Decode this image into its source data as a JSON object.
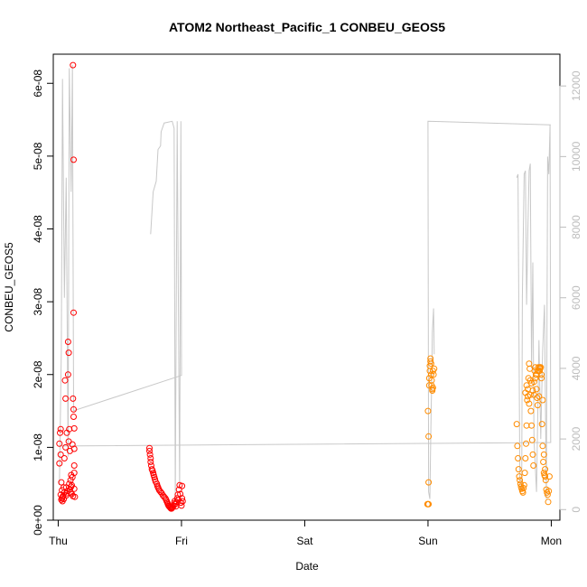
{
  "chart_data": {
    "type": "scatter",
    "title": "ATOM2 Northeast_Pacific_1 CONBEU_GEOS5",
    "xlabel": "Date",
    "ylabel": "CONBEU_GEOS5",
    "x_ticks": [
      "Thu",
      "Fri",
      "Sat",
      "Sun",
      "Mon"
    ],
    "xlim": [
      -0.04,
      4.07
    ],
    "ylim": [
      0,
      6.4e-08
    ],
    "y_ticks": [
      {
        "value": 0,
        "label": "0e+00"
      },
      {
        "value": 1e-08,
        "label": "1e-08"
      },
      {
        "value": 2e-08,
        "label": "2e-08"
      },
      {
        "value": 3e-08,
        "label": "3e-08"
      },
      {
        "value": 4e-08,
        "label": "4e-08"
      },
      {
        "value": 5e-08,
        "label": "5e-08"
      },
      {
        "value": 6e-08,
        "label": "6e-08"
      }
    ],
    "y2_range": [
      -300,
      12900
    ],
    "y2_ticks": [
      0,
      2000,
      4000,
      6000,
      8000,
      10000,
      12000
    ],
    "grid": false,
    "colors": {
      "series1": "#ff0000",
      "series2": "#ff8c00",
      "altitude": "#c8c8c8",
      "axis": "#000000",
      "right_axis": "#bdbdbd"
    },
    "series": [
      {
        "color": "#ff0000",
        "points": [
          [
            0.01,
            1.05e-08
          ],
          [
            0.01,
            7.8e-09
          ],
          [
            0.015,
            1.2e-08
          ],
          [
            0.02,
            1.25e-08
          ],
          [
            0.02,
            9e-09
          ],
          [
            0.025,
            5.2e-09
          ],
          [
            0.02,
            3.5e-09
          ],
          [
            0.025,
            2.8e-09
          ],
          [
            0.03,
            3e-09
          ],
          [
            0.03,
            4.1e-09
          ],
          [
            0.035,
            3.2e-09
          ],
          [
            0.035,
            2.6e-09
          ],
          [
            0.04,
            3.3e-09
          ],
          [
            0.045,
            2.9e-09
          ],
          [
            0.045,
            4.5e-09
          ],
          [
            0.05,
            8.5e-09
          ],
          [
            0.05,
            3.8e-09
          ],
          [
            0.055,
            1.92e-08
          ],
          [
            0.06,
            1e-08
          ],
          [
            0.06,
            1.67e-08
          ],
          [
            0.065,
            4.5e-09
          ],
          [
            0.065,
            3.4e-09
          ],
          [
            0.07,
            3.7e-09
          ],
          [
            0.07,
            1.2e-08
          ],
          [
            0.075,
            4e-09
          ],
          [
            0.08,
            2e-08
          ],
          [
            0.08,
            2.45e-08
          ],
          [
            0.085,
            2.3e-08
          ],
          [
            0.085,
            1.08e-08
          ],
          [
            0.09,
            1.25e-08
          ],
          [
            0.09,
            5e-09
          ],
          [
            0.095,
            4.2e-09
          ],
          [
            0.095,
            9.5e-09
          ],
          [
            0.1,
            3.8e-09
          ],
          [
            0.1,
            5.5e-09
          ],
          [
            0.105,
            4.6e-09
          ],
          [
            0.105,
            6.2e-09
          ],
          [
            0.11,
            4.8e-09
          ],
          [
            0.11,
            3.6e-09
          ],
          [
            0.115,
            5.9e-09
          ],
          [
            0.115,
            1.04e-08
          ],
          [
            0.12,
            3.3e-09
          ],
          [
            0.12,
            1.67e-08
          ],
          [
            0.125,
            1.52e-08
          ],
          [
            0.125,
            1.42e-08
          ],
          [
            0.13,
            1.26e-08
          ],
          [
            0.13,
            9.8e-09
          ],
          [
            0.13,
            7.5e-09
          ],
          [
            0.13,
            6.5e-09
          ],
          [
            0.13,
            4.3e-09
          ],
          [
            0.135,
            3.2e-09
          ],
          [
            0.125,
            2.85e-08
          ],
          [
            0.125,
            4.95e-08
          ],
          [
            0.12,
            6.25e-08
          ],
          [
            0.74,
            9.9e-09
          ],
          [
            0.74,
            9.5e-09
          ],
          [
            0.745,
            9e-09
          ],
          [
            0.75,
            8.5e-09
          ],
          [
            0.75,
            8e-09
          ],
          [
            0.755,
            7.5e-09
          ],
          [
            0.76,
            7e-09
          ],
          [
            0.765,
            6.8e-09
          ],
          [
            0.77,
            6.5e-09
          ],
          [
            0.775,
            6.2e-09
          ],
          [
            0.78,
            5.9e-09
          ],
          [
            0.785,
            5.6e-09
          ],
          [
            0.79,
            5.3e-09
          ],
          [
            0.8,
            5e-09
          ],
          [
            0.805,
            4.7e-09
          ],
          [
            0.81,
            4.5e-09
          ],
          [
            0.815,
            4.3e-09
          ],
          [
            0.82,
            4.1e-09
          ],
          [
            0.83,
            3.9e-09
          ],
          [
            0.84,
            3.7e-09
          ],
          [
            0.85,
            3.4e-09
          ],
          [
            0.86,
            3.2e-09
          ],
          [
            0.87,
            3e-09
          ],
          [
            0.875,
            2.8e-09
          ],
          [
            0.88,
            2.6e-09
          ],
          [
            0.885,
            2.4e-09
          ],
          [
            0.89,
            2.2e-09
          ],
          [
            0.895,
            2e-09
          ],
          [
            0.9,
            1.9e-09
          ],
          [
            0.905,
            1.8e-09
          ],
          [
            0.91,
            1.7e-09
          ],
          [
            0.915,
            1.6e-09
          ],
          [
            0.92,
            1.6e-09
          ],
          [
            0.925,
            1.7e-09
          ],
          [
            0.93,
            1.8e-09
          ],
          [
            0.935,
            2e-09
          ],
          [
            0.94,
            2.3e-09
          ],
          [
            0.945,
            2.6e-09
          ],
          [
            0.95,
            2.2e-09
          ],
          [
            0.955,
            1.9e-09
          ],
          [
            0.96,
            2.5e-09
          ],
          [
            0.965,
            3e-09
          ],
          [
            0.97,
            3.5e-09
          ],
          [
            0.975,
            2.8e-09
          ],
          [
            0.98,
            4.2e-09
          ],
          [
            0.985,
            4.8e-09
          ],
          [
            0.99,
            3.6e-09
          ],
          [
            0.995,
            2.4e-09
          ],
          [
            1.0,
            2e-09
          ],
          [
            1.005,
            3e-09
          ],
          [
            1.005,
            4.7e-09
          ],
          [
            1.01,
            2.6e-09
          ]
        ]
      },
      {
        "color": "#ff8c00",
        "points": [
          [
            2.995,
            2.2e-09
          ],
          [
            3.0,
            2.2e-09
          ],
          [
            3.005,
            2.2e-09
          ],
          [
            3.0,
            1.5e-08
          ],
          [
            3.005,
            1.15e-08
          ],
          [
            3.005,
            5.2e-09
          ],
          [
            3.01,
            1.85e-08
          ],
          [
            3.01,
            1.95e-08
          ],
          [
            3.015,
            2.05e-08
          ],
          [
            3.015,
            2.12e-08
          ],
          [
            3.02,
            2.18e-08
          ],
          [
            3.02,
            2.22e-08
          ],
          [
            3.025,
            2.15e-08
          ],
          [
            3.025,
            2e-08
          ],
          [
            3.03,
            1.92e-08
          ],
          [
            3.03,
            1.85e-08
          ],
          [
            3.035,
            1.8e-08
          ],
          [
            3.035,
            1.78e-08
          ],
          [
            3.04,
            1.82e-08
          ],
          [
            3.04,
            2.05e-08
          ],
          [
            3.045,
            2e-08
          ],
          [
            3.05,
            2.08e-08
          ],
          [
            3.72,
            1.32e-08
          ],
          [
            3.725,
            1.02e-08
          ],
          [
            3.73,
            8.5e-09
          ],
          [
            3.735,
            7e-09
          ],
          [
            3.74,
            6e-09
          ],
          [
            3.745,
            5.5e-09
          ],
          [
            3.75,
            5e-09
          ],
          [
            3.755,
            4.6e-09
          ],
          [
            3.76,
            4.3e-09
          ],
          [
            3.765,
            4e-09
          ],
          [
            3.77,
            3.8e-09
          ],
          [
            3.775,
            4.4e-09
          ],
          [
            3.78,
            4.8e-09
          ],
          [
            3.785,
            6.5e-09
          ],
          [
            3.79,
            8.5e-09
          ],
          [
            3.795,
            1.05e-08
          ],
          [
            3.8,
            1.3e-08
          ],
          [
            3.805,
            1.65e-08
          ],
          [
            3.81,
            1.8e-08
          ],
          [
            3.815,
            1.95e-08
          ],
          [
            3.82,
            2.15e-08
          ],
          [
            3.825,
            2.08e-08
          ],
          [
            3.83,
            1.72e-08
          ],
          [
            3.835,
            1.5e-08
          ],
          [
            3.84,
            1.3e-08
          ],
          [
            3.845,
            1.1e-08
          ],
          [
            3.85,
            9e-09
          ],
          [
            3.855,
            7.5e-09
          ],
          [
            3.86,
            1.9e-08
          ],
          [
            3.865,
            2.05e-08
          ],
          [
            3.87,
            2.1e-08
          ],
          [
            3.875,
            2e-08
          ],
          [
            3.88,
            1.8e-08
          ],
          [
            3.885,
            1.68e-08
          ],
          [
            3.89,
            2.05e-08
          ],
          [
            3.895,
            2.1e-08
          ],
          [
            3.9,
            2.05e-08
          ],
          [
            3.905,
            2.1e-08
          ],
          [
            3.91,
            2.08e-08
          ],
          [
            3.915,
            2.1e-08
          ],
          [
            3.92,
            1.95e-08
          ],
          [
            3.925,
            1.32e-08
          ],
          [
            3.93,
            1.02e-08
          ],
          [
            3.935,
            8e-09
          ],
          [
            3.94,
            6.5e-09
          ],
          [
            3.945,
            6.2e-09
          ],
          [
            3.95,
            6e-09
          ],
          [
            3.955,
            5.5e-09
          ],
          [
            3.96,
            4.2e-09
          ],
          [
            3.965,
            3.8e-09
          ],
          [
            3.97,
            3.5e-09
          ],
          [
            3.975,
            2.5e-09
          ],
          [
            3.98,
            4e-09
          ],
          [
            3.985,
            6e-09
          ],
          [
            3.79,
            1.75e-08
          ],
          [
            3.8,
            1.85e-08
          ],
          [
            3.81,
            1.7e-08
          ],
          [
            3.82,
            1.6e-08
          ],
          [
            3.83,
            1.92e-08
          ],
          [
            3.84,
            1.88e-08
          ],
          [
            3.85,
            1.78e-08
          ],
          [
            3.86,
            1.72e-08
          ],
          [
            3.87,
            1.95e-08
          ],
          [
            3.88,
            2e-08
          ],
          [
            3.89,
            1.58e-08
          ],
          [
            3.9,
            1.7e-08
          ],
          [
            3.905,
            2.05e-08
          ],
          [
            3.91,
            2.1e-08
          ],
          [
            3.92,
            2e-08
          ],
          [
            3.93,
            1.65e-08
          ],
          [
            3.94,
            9e-09
          ],
          [
            3.95,
            7e-09
          ]
        ]
      }
    ],
    "altitude_line": {
      "color": "#c8c8c8",
      "segments": [
        [
          [
            0.01,
            700
          ],
          [
            0.025,
            4500
          ],
          [
            0.035,
            12200
          ],
          [
            0.05,
            6000
          ],
          [
            0.065,
            9400
          ],
          [
            0.08,
            1500
          ],
          [
            0.09,
            12500
          ],
          [
            0.105,
            9000
          ],
          [
            0.115,
            12600
          ],
          [
            0.125,
            2800
          ],
          [
            1.0,
            3800
          ],
          [
            0.995,
            11000
          ],
          [
            0.985,
            600
          ],
          [
            0.965,
            11000
          ],
          [
            0.95,
            300
          ],
          [
            0.94,
            10800
          ],
          [
            0.925,
            11000
          ],
          [
            0.86,
            10950
          ],
          [
            0.835,
            10700
          ],
          [
            0.83,
            10300
          ],
          [
            0.81,
            10200
          ],
          [
            0.795,
            9300
          ],
          [
            0.77,
            9000
          ],
          [
            0.75,
            7800
          ]
        ],
        [
          [
            0.02,
            1800
          ],
          [
            3.995,
            1900
          ],
          [
            3.99,
            10900
          ],
          [
            3.98,
            9500
          ],
          [
            3.97,
            10000
          ],
          [
            3.96,
            300
          ],
          [
            3.945,
            5800
          ],
          [
            3.93,
            4500
          ],
          [
            3.915,
            2000
          ],
          [
            3.9,
            4800
          ],
          [
            3.88,
            500
          ],
          [
            3.86,
            2000
          ],
          [
            3.85,
            7000
          ],
          [
            3.84,
            4000
          ],
          [
            3.83,
            9800
          ],
          [
            3.82,
            9600
          ],
          [
            3.81,
            7900
          ],
          [
            3.8,
            5800
          ],
          [
            3.79,
            9600
          ],
          [
            3.78,
            9500
          ],
          [
            3.765,
            6000
          ],
          [
            3.76,
            600
          ],
          [
            3.75,
            500
          ],
          [
            3.745,
            1000
          ],
          [
            3.73,
            9500
          ],
          [
            3.72,
            9400
          ]
        ],
        [
          [
            3.995,
            10900
          ],
          [
            3.0,
            11000
          ],
          [
            3.005,
            500
          ],
          [
            3.015,
            300
          ],
          [
            3.025,
            2800
          ],
          [
            3.03,
            3500
          ],
          [
            3.035,
            5000
          ],
          [
            3.045,
            5700
          ],
          [
            3.05,
            4400
          ]
        ]
      ]
    }
  }
}
